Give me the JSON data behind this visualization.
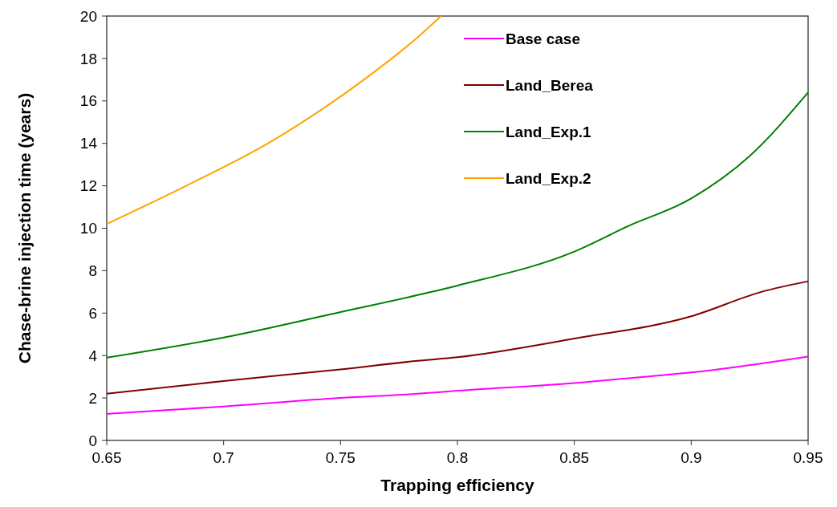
{
  "chart_data": {
    "type": "line",
    "xlabel": "Trapping efficiency",
    "ylabel": "Chase-brine injection time (years)",
    "xlim": [
      0.65,
      0.95
    ],
    "xticks": [
      0.65,
      0.7,
      0.75,
      0.8,
      0.85,
      0.9,
      0.95
    ],
    "ylim": [
      0,
      20
    ],
    "yticks": [
      0,
      2,
      4,
      6,
      8,
      10,
      12,
      14,
      16,
      18,
      20
    ],
    "legend": "top right",
    "grid": false,
    "marker": "none",
    "line_style": "solid",
    "series": [
      {
        "name": "Base case",
        "color": "#ff00ff",
        "x": [
          0.65,
          0.7,
          0.75,
          0.783,
          0.8,
          0.85,
          0.88,
          0.9,
          0.95
        ],
        "values": [
          1.25,
          1.6,
          2.0,
          2.2,
          2.34,
          2.7,
          3.0,
          3.2,
          3.95
        ]
      },
      {
        "name": "Land_Berea",
        "color": "#800000",
        "x": [
          0.65,
          0.7,
          0.75,
          0.783,
          0.8,
          0.85,
          0.9,
          0.93,
          0.95
        ],
        "values": [
          2.2,
          2.8,
          3.35,
          3.75,
          3.92,
          4.8,
          5.85,
          7.0,
          7.5
        ]
      },
      {
        "name": "Land_Exp.1",
        "color": "#008000",
        "x": [
          0.65,
          0.7,
          0.75,
          0.783,
          0.8,
          0.85,
          0.873,
          0.9,
          0.925,
          0.95
        ],
        "values": [
          3.9,
          4.85,
          6.05,
          6.85,
          7.3,
          8.9,
          10.1,
          11.4,
          13.4,
          16.4
        ]
      },
      {
        "name": "Land_Exp.2",
        "color": "#ffa500",
        "x": [
          0.65,
          0.684,
          0.719,
          0.742,
          0.76,
          0.783,
          0.793
        ],
        "values": [
          10.2,
          12.0,
          14.0,
          15.6,
          17.0,
          19.0,
          20.0
        ]
      }
    ]
  }
}
